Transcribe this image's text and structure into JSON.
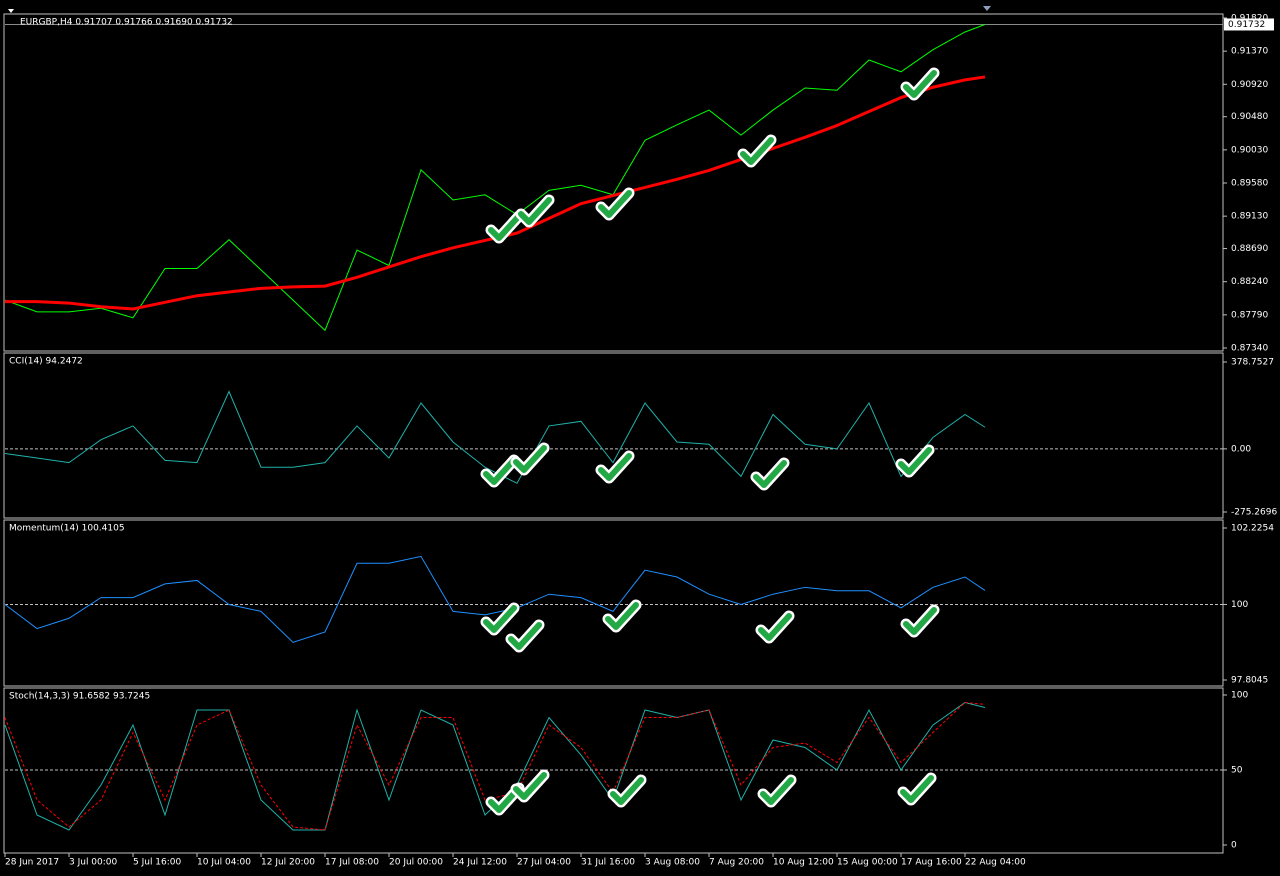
{
  "chart_data": [
    {
      "type": "line",
      "title": "EURGBP,H4  0.91707 0.91766 0.91690 0.91732",
      "x": [
        0,
        8,
        16,
        24,
        32,
        40,
        48,
        56,
        64,
        72,
        80,
        88,
        96,
        104,
        112,
        120,
        128,
        136,
        144,
        152,
        160,
        168,
        176,
        184,
        192,
        200,
        208,
        216,
        224,
        232,
        240,
        245
      ],
      "xlim": [
        0,
        304.5
      ],
      "series": [
        {
          "color": "#00ff00",
          "values": [
            0.8799,
            0.8783,
            0.8783,
            0.8788,
            0.8775,
            0.8842,
            0.8842,
            0.8881,
            0.884,
            0.8799,
            0.8758,
            0.8867,
            0.8846,
            0.8976,
            0.8935,
            0.8942,
            0.8915,
            0.8948,
            0.8955,
            0.8942,
            0.9016,
            0.9037,
            0.9057,
            0.9023,
            0.9057,
            0.9087,
            0.9084,
            0.9125,
            0.9109,
            0.9139,
            0.9163,
            0.91732
          ]
        },
        {
          "color": "#ff0000",
          "values": [
            0.8797,
            0.8797,
            0.8795,
            0.879,
            0.8787,
            0.8796,
            0.8805,
            0.881,
            0.8815,
            0.8817,
            0.8818,
            0.883,
            0.8844,
            0.8858,
            0.887,
            0.888,
            0.889,
            0.891,
            0.893,
            0.8941,
            0.8952,
            0.8963,
            0.8975,
            0.899,
            0.9005,
            0.902,
            0.9036,
            0.9055,
            0.9074,
            0.9088,
            0.9098,
            0.9102
          ]
        }
      ],
      "ylim": [
        0.8734,
        0.9182
      ],
      "yticks": [
        {
          "value": 0.9182,
          "label": "0.91820"
        },
        {
          "value": 0.9137,
          "label": "0.91370"
        },
        {
          "value": 0.9092,
          "label": "0.90920"
        },
        {
          "value": 0.9048,
          "label": "0.90480"
        },
        {
          "value": 0.9003,
          "label": "0.90030"
        },
        {
          "value": 0.8958,
          "label": "0.89580"
        },
        {
          "value": 0.8913,
          "label": "0.89130"
        },
        {
          "value": 0.8869,
          "label": "0.88690"
        },
        {
          "value": 0.8824,
          "label": "0.88240"
        },
        {
          "value": 0.8779,
          "label": "0.87790"
        },
        {
          "value": 0.8734,
          "label": "0.87340"
        }
      ],
      "levels": []
    },
    {
      "type": "line",
      "title": "CCI(14) 94.2472",
      "x": [
        0,
        8,
        16,
        24,
        32,
        40,
        48,
        56,
        64,
        72,
        80,
        88,
        96,
        104,
        112,
        120,
        128,
        136,
        144,
        152,
        160,
        168,
        176,
        184,
        192,
        200,
        208,
        216,
        224,
        232,
        240,
        245
      ],
      "xlim": [
        0,
        304.5
      ],
      "series": [
        {
          "color": "#20b2aa",
          "values": [
            -20,
            -40,
            -60,
            40,
            100,
            -50,
            -60,
            250,
            -80,
            -80,
            -60,
            100,
            -40,
            200,
            30,
            -80,
            -150,
            100,
            120,
            -60,
            200,
            30,
            20,
            -120,
            150,
            20,
            0,
            200,
            -120,
            50,
            150,
            94.2472
          ]
        }
      ],
      "ylim": [
        -275.2696,
        378.7527
      ],
      "yticks": [
        378.7527,
        {
          "value": 0,
          "label": "0.00"
        },
        -275.2696
      ],
      "levels": [
        0
      ]
    },
    {
      "type": "line",
      "title": "Momentum(14) 100.4105",
      "x": [
        0,
        8,
        16,
        24,
        32,
        40,
        48,
        56,
        64,
        72,
        80,
        88,
        96,
        104,
        112,
        120,
        128,
        136,
        144,
        152,
        160,
        168,
        176,
        184,
        192,
        200,
        208,
        216,
        224,
        232,
        240,
        245
      ],
      "xlim": [
        0,
        304.5
      ],
      "series": [
        {
          "color": "#1e90ff",
          "values": [
            100,
            99.3,
            99.6,
            100.2,
            100.2,
            100.6,
            100.7,
            100,
            99.8,
            98.9,
            99.2,
            101.2,
            101.2,
            101.4,
            99.8,
            99.7,
            99.9,
            100.3,
            100.2,
            99.8,
            101,
            100.8,
            100.3,
            100,
            100.3,
            100.5,
            100.4,
            100.4,
            99.9,
            100.5,
            100.8,
            100.4105
          ]
        }
      ],
      "ylim": [
        97.8045,
        102.2254
      ],
      "yticks": [
        102.2254,
        100,
        97.8045
      ],
      "levels": [
        100
      ]
    },
    {
      "type": "line",
      "title": "Stoch(14,3,3) 91.6582 93.7245",
      "x": [
        0,
        8,
        16,
        24,
        32,
        40,
        48,
        56,
        64,
        72,
        80,
        88,
        96,
        104,
        112,
        120,
        128,
        136,
        144,
        152,
        160,
        168,
        176,
        184,
        192,
        200,
        208,
        216,
        224,
        232,
        240,
        245
      ],
      "xlim": [
        0,
        304.5
      ],
      "series": [
        {
          "color": "#20b2aa",
          "values": [
            80,
            20,
            10,
            40,
            80,
            20,
            90,
            90,
            30,
            10,
            10,
            90,
            30,
            90,
            80,
            20,
            40,
            85,
            60,
            30,
            90,
            85,
            90,
            30,
            70,
            65,
            50,
            90,
            50,
            80,
            95,
            91.6582
          ]
        },
        {
          "color": "#ff0000",
          "dashed": true,
          "values": [
            85,
            30,
            12,
            30,
            75,
            30,
            80,
            90,
            40,
            12,
            10,
            80,
            40,
            85,
            85,
            30,
            35,
            80,
            65,
            35,
            85,
            85,
            90,
            40,
            65,
            68,
            55,
            85,
            55,
            75,
            95,
            93.7245
          ]
        }
      ],
      "ylim": [
        0,
        100
      ],
      "yticks": [
        100,
        50,
        0
      ],
      "levels": [
        50
      ],
      "xticks": [
        {
          "value": 0,
          "label": "28 Jun 2017"
        },
        {
          "value": 16,
          "label": "3 Jul 00:00"
        },
        {
          "value": 32,
          "label": "5 Jul 16:00"
        },
        {
          "value": 48,
          "label": "10 Jul 04:00"
        },
        {
          "value": 64,
          "label": "12 Jul 20:00"
        },
        {
          "value": 80,
          "label": "17 Jul 08:00"
        },
        {
          "value": 96,
          "label": "20 Jul 00:00"
        },
        {
          "value": 112,
          "label": "24 Jul 12:00"
        },
        {
          "value": 128,
          "label": "27 Jul 04:00"
        },
        {
          "value": 144,
          "label": "31 Jul 16:00"
        },
        {
          "value": 160,
          "label": "3 Aug 08:00"
        },
        {
          "value": 176,
          "label": "7 Aug 20:00"
        },
        {
          "value": 192,
          "label": "10 Aug 12:00"
        },
        {
          "value": 208,
          "label": "15 Aug 00:00"
        },
        {
          "value": 224,
          "label": "17 Aug 16:00"
        },
        {
          "value": 240,
          "label": "22 Aug 04:00"
        }
      ]
    }
  ]
}
